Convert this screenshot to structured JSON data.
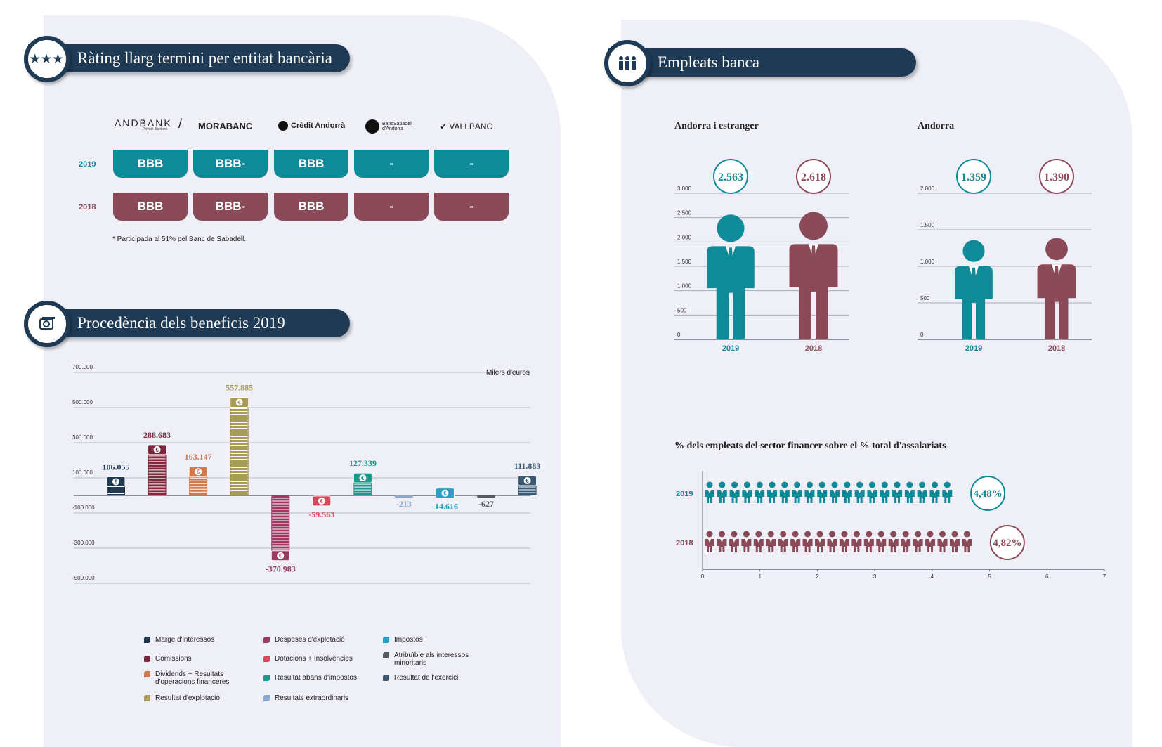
{
  "colors": {
    "teal": "#0e8a98",
    "maroon": "#8a4a58",
    "navy": "#1f3a55"
  },
  "rating": {
    "title": "Ràting llarg termini per entitat bancària",
    "icon": "stars-icon",
    "banks": [
      "ANDBANK",
      "MORABANC",
      "Crèdit Andorrà",
      "BancSabadell d'Andorra",
      "VALLBANC"
    ],
    "bank_sub": "Private Bankers",
    "rows": [
      {
        "year": "2019",
        "values": [
          "BBB",
          "BBB-",
          "BBB",
          "-",
          "-"
        ]
      },
      {
        "year": "2018",
        "values": [
          "BBB",
          "BBB-",
          "BBB",
          "-",
          "-"
        ]
      }
    ],
    "note": "* Participada al 51% pel Banc de Sabadell."
  },
  "benefits": {
    "title": "Procedència dels beneficis 2019",
    "icon": "money-icon",
    "unit": "Milers d'euros",
    "chart_data": {
      "type": "bar",
      "title": "Procedència dels beneficis 2019",
      "ylabel": "Milers d'euros",
      "ylim": [
        -500000,
        700000
      ],
      "y_ticks": [
        700000,
        500000,
        300000,
        100000,
        -100000,
        -300000,
        -500000
      ],
      "y_tick_labels": [
        "700.000",
        "500.000",
        "300.000",
        "100.000",
        "-100.000",
        "-300.000",
        "-500.000"
      ],
      "categories": [
        "Marge d'interessos",
        "Comissions",
        "Dividends + Resultats d'operacions financeres",
        "Resultat d'explotació",
        "Despeses d'explotació",
        "Dotacions + Insolvències",
        "Resultat abans d'impostos",
        "Resultats extraordinaris",
        "Impostos",
        "Atribuïble als interessos minoritaris",
        "Resultat de l'exercici"
      ],
      "values": [
        106055,
        288683,
        163147,
        557885,
        -370983,
        -59563,
        127339,
        -213,
        -14616,
        -627,
        111883
      ],
      "value_labels": [
        "106.055",
        "288.683",
        "163.147",
        "557.885",
        "-370.983",
        "-59.563",
        "127.339",
        "-213",
        "-14.616",
        "-627",
        "111.883"
      ],
      "colors": [
        "#1f3a55",
        "#7a2a3c",
        "#d07a4e",
        "#a89a5a",
        "#9e3a62",
        "#d44a58",
        "#1a9a8a",
        "#8aa8d0",
        "#2a9ec8",
        "#555a60",
        "#3a5870"
      ],
      "label_colors": [
        "#1f3a55",
        "#7a2a3c",
        "#d07a4e",
        "#a89a5a",
        "#9e3a62",
        "#d44a58",
        "#1a9a8a",
        "#8aa8d0",
        "#2a9ec8",
        "#555a60",
        "#3a5870"
      ]
    },
    "legend": [
      "Marge d'interessos",
      "Comissions",
      "Dividends + Resultats d'operacions financeres",
      "Resultat d'explotació",
      "Despeses d'explotació",
      "Dotacions + Insolvències",
      "Resultat abans d'impostos",
      "Resultats extraordinaris",
      "Impostos",
      "Atribuïble als interessos minoritaris",
      "Resultat de l'exercici"
    ]
  },
  "employees": {
    "title": "Empleats banca",
    "icon": "people-icon",
    "charts": [
      {
        "title": "Andorra i estranger",
        "ylim": [
          0,
          3000
        ],
        "ticks": [
          "0",
          "500",
          "1.000",
          "1.500",
          "2.000",
          "2.500",
          "3.000"
        ],
        "tick_values": [
          0,
          500,
          1000,
          1500,
          2000,
          2500,
          3000
        ],
        "years": [
          "2019",
          "2018"
        ],
        "values": [
          2563,
          2618
        ],
        "value_labels": [
          "2.563",
          "2.618"
        ]
      },
      {
        "title": "Andorra",
        "ylim": [
          0,
          2000
        ],
        "ticks": [
          "0",
          "500",
          "1.000",
          "1.500",
          "2.000"
        ],
        "tick_values": [
          0,
          500,
          1000,
          1500,
          2000
        ],
        "years": [
          "2019",
          "2018"
        ],
        "values": [
          1359,
          1390
        ],
        "value_labels": [
          "1.359",
          "1.390"
        ]
      }
    ],
    "share": {
      "title": "% dels empleats del sector financer sobre el % total d'assalariats",
      "years": [
        "2019",
        "2018"
      ],
      "values": [
        4.48,
        4.82
      ],
      "value_labels": [
        "4,48%",
        "4,82%"
      ],
      "x_ticks": [
        "0",
        "1",
        "2",
        "3",
        "4",
        "5",
        "6",
        "7"
      ],
      "xlim": [
        0,
        7
      ]
    }
  },
  "chart_data": [
    {
      "type": "bar",
      "title": "Procedència dels beneficis 2019",
      "categories": [
        "Marge d'interessos",
        "Comissions",
        "Dividends + Resultats d'operacions financeres",
        "Resultat d'explotació",
        "Despeses d'explotació",
        "Dotacions + Insolvències",
        "Resultat abans d'impostos",
        "Resultats extraordinaris",
        "Impostos",
        "Atribuïble als interessos minoritaris",
        "Resultat de l'exercici"
      ],
      "values": [
        106055,
        288683,
        163147,
        557885,
        -370983,
        -59563,
        127339,
        -213,
        -14616,
        -627,
        111883
      ],
      "ylabel": "Milers d'euros",
      "ylim": [
        -500000,
        700000
      ]
    },
    {
      "type": "bar",
      "title": "Andorra i estranger",
      "categories": [
        "2019",
        "2018"
      ],
      "values": [
        2563,
        2618
      ],
      "ylim": [
        0,
        3000
      ]
    },
    {
      "type": "bar",
      "title": "Andorra",
      "categories": [
        "2019",
        "2018"
      ],
      "values": [
        1359,
        1390
      ],
      "ylim": [
        0,
        2000
      ]
    },
    {
      "type": "bar",
      "title": "% dels empleats del sector financer sobre el % total d'assalariats",
      "categories": [
        "2019",
        "2018"
      ],
      "values": [
        4.48,
        4.82
      ],
      "xlim": [
        0,
        7
      ]
    }
  ]
}
